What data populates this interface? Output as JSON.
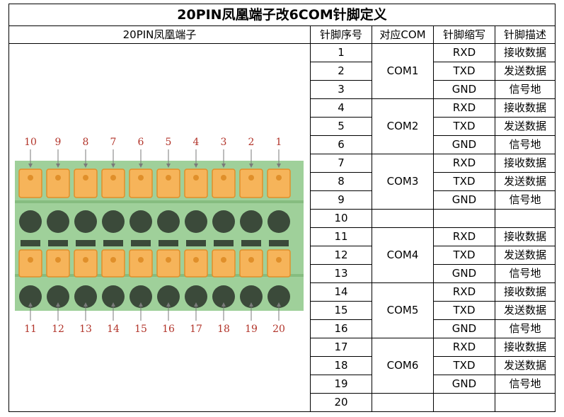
{
  "title": "20PIN凤凰端子改6COM针脚定义",
  "headers": {
    "terminal": "20PIN凤凰端子",
    "pin_no": "针脚序号",
    "com": "对应COM",
    "abbr": "针脚缩写",
    "desc": "针脚描述"
  },
  "rows": [
    {
      "pin": "1",
      "abbr": "RXD",
      "desc": "接收数据"
    },
    {
      "pin": "2",
      "abbr": "TXD",
      "desc": "发送数据"
    },
    {
      "pin": "3",
      "abbr": "GND",
      "desc": "信号地"
    },
    {
      "pin": "4",
      "abbr": "RXD",
      "desc": "接收数据"
    },
    {
      "pin": "5",
      "abbr": "TXD",
      "desc": "发送数据"
    },
    {
      "pin": "6",
      "abbr": "GND",
      "desc": "信号地"
    },
    {
      "pin": "7",
      "abbr": "RXD",
      "desc": "接收数据"
    },
    {
      "pin": "8",
      "abbr": "TXD",
      "desc": "发送数据"
    },
    {
      "pin": "9",
      "abbr": "GND",
      "desc": "信号地"
    },
    {
      "pin": "10",
      "abbr": "",
      "desc": ""
    },
    {
      "pin": "11",
      "abbr": "RXD",
      "desc": "接收数据"
    },
    {
      "pin": "12",
      "abbr": "TXD",
      "desc": "发送数据"
    },
    {
      "pin": "13",
      "abbr": "GND",
      "desc": "信号地"
    },
    {
      "pin": "14",
      "abbr": "RXD",
      "desc": "接收数据"
    },
    {
      "pin": "15",
      "abbr": "TXD",
      "desc": "发送数据"
    },
    {
      "pin": "16",
      "abbr": "GND",
      "desc": "信号地"
    },
    {
      "pin": "17",
      "abbr": "RXD",
      "desc": "接收数据"
    },
    {
      "pin": "18",
      "abbr": "TXD",
      "desc": "发送数据"
    },
    {
      "pin": "19",
      "abbr": "GND",
      "desc": "信号地"
    },
    {
      "pin": "20",
      "abbr": "",
      "desc": ""
    }
  ],
  "com_groups": [
    {
      "label": "COM1",
      "start": 0,
      "span": 3
    },
    {
      "label": "COM2",
      "start": 3,
      "span": 3
    },
    {
      "label": "COM3",
      "start": 6,
      "span": 3
    },
    {
      "label": "",
      "start": 9,
      "span": 1
    },
    {
      "label": "COM4",
      "start": 10,
      "span": 3
    },
    {
      "label": "COM5",
      "start": 13,
      "span": 3
    },
    {
      "label": "COM6",
      "start": 16,
      "span": 3
    },
    {
      "label": "",
      "start": 19,
      "span": 1
    }
  ],
  "terminal_diagram": {
    "top_labels": [
      "10",
      "9",
      "8",
      "7",
      "6",
      "5",
      "4",
      "3",
      "2",
      "1"
    ],
    "bottom_labels": [
      "11",
      "12",
      "13",
      "14",
      "15",
      "16",
      "17",
      "18",
      "19",
      "20"
    ],
    "colors": {
      "body": "#9fd09a",
      "body_dark": "#86bd80",
      "lever": "#f6b45a",
      "lever_dark": "#e08f2a",
      "hole": "#3b4a3a",
      "label": "#b2342a"
    }
  }
}
